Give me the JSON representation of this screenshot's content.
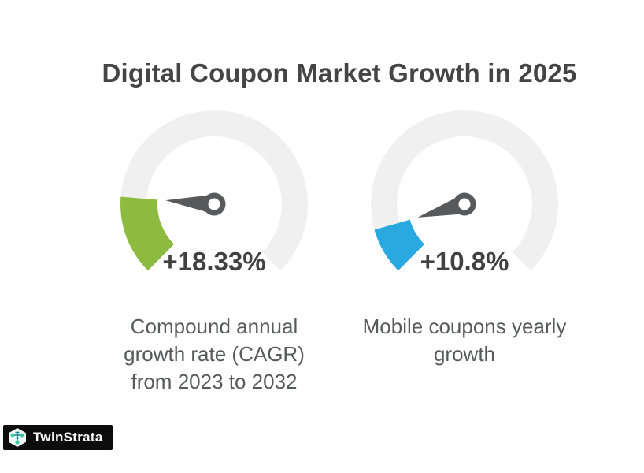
{
  "title": "Digital Coupon Market Growth in 2025",
  "logo": {
    "brand": "TwinStrata",
    "icon": "network-hexagon-icon"
  },
  "colors": {
    "background": "#ffffff",
    "ring": "#f0f0f0",
    "needle": "#58595b",
    "needle_hub_hole": "#ffffff",
    "title_text": "#454545",
    "value_text": "#414141",
    "caption_text": "#58595b",
    "green": "#8cbb40",
    "blue": "#29a9df",
    "logo_bg": "#0c0c0c",
    "logo_text": "#f7f7f7",
    "logo_teal": "#1e8a8f",
    "logo_node_green": "#3fc9a0",
    "logo_badge": "#eef8f6"
  },
  "chart_data": [
    {
      "type": "gauge",
      "title": "Compound annual growth rate (CAGR) from 2023 to 2032",
      "value": 18.33,
      "min": 0,
      "max": 100,
      "display_value": "+18.33%",
      "caption_lines": [
        "Compound annual",
        "growth rate (CAGR)",
        "from 2023 to 2032"
      ],
      "arc_color": "#8cbb40",
      "start_angle_deg": 225,
      "sweep_deg": 270
    },
    {
      "type": "gauge",
      "title": "Mobile coupons yearly growth",
      "value": 10.8,
      "min": 0,
      "max": 100,
      "display_value": "+10.8%",
      "caption_lines": [
        "Mobile coupons yearly",
        "growth"
      ],
      "arc_color": "#29a9df",
      "start_angle_deg": 225,
      "sweep_deg": 270
    }
  ]
}
